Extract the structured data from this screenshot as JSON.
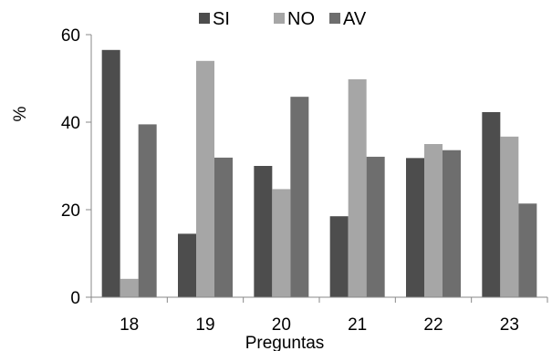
{
  "chart_data": {
    "type": "bar",
    "title": "",
    "xlabel": "Preguntas",
    "ylabel": "%",
    "categories": [
      "18",
      "19",
      "20",
      "21",
      "22",
      "23"
    ],
    "ylim": [
      0,
      60
    ],
    "yticks": [
      "0",
      "20",
      "40",
      "60"
    ],
    "grid": false,
    "legend_position": "top",
    "series": [
      {
        "name": "SI",
        "color": "#4d4d4d",
        "values": [
          56.5,
          14.5,
          30,
          18.5,
          31.8,
          42.3
        ]
      },
      {
        "name": "NO",
        "color": "#a6a6a6",
        "values": [
          4.2,
          54,
          24.7,
          49.8,
          35,
          36.7
        ]
      },
      {
        "name": "AV",
        "color": "#6e6e6e",
        "values": [
          39.5,
          31.9,
          45.8,
          32.1,
          33.6,
          21.4
        ]
      }
    ]
  }
}
